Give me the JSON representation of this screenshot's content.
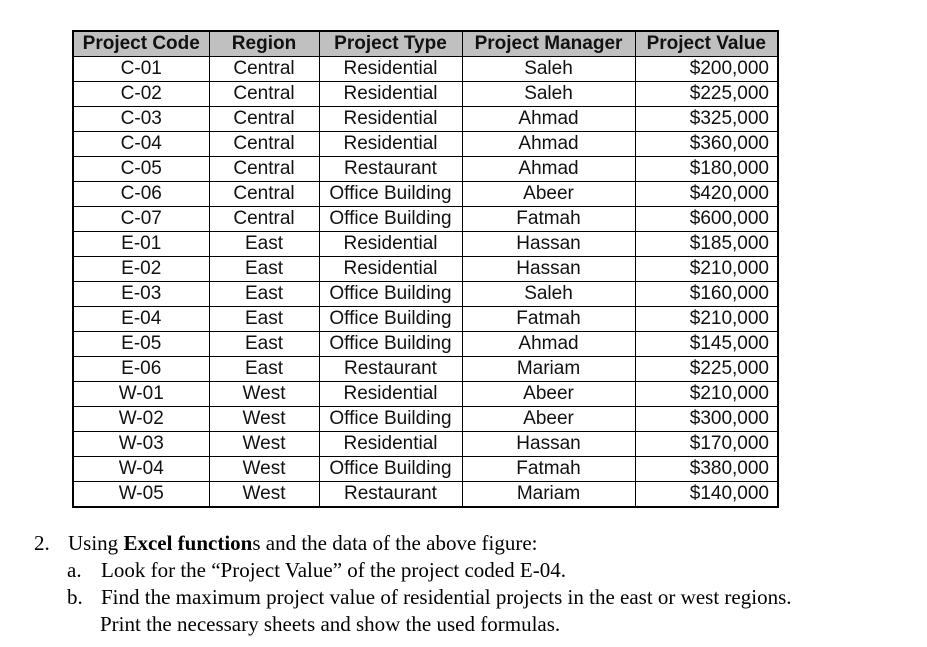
{
  "table": {
    "headers": [
      "Project Code",
      "Region",
      "Project Type",
      "Project Manager",
      "Project Value"
    ],
    "header_bg": "#c0c0c0",
    "rows": [
      [
        "C-01",
        "Central",
        "Residential",
        "Saleh",
        "$200,000"
      ],
      [
        "C-02",
        "Central",
        "Residential",
        "Saleh",
        "$225,000"
      ],
      [
        "C-03",
        "Central",
        "Residential",
        "Ahmad",
        "$325,000"
      ],
      [
        "C-04",
        "Central",
        "Residential",
        "Ahmad",
        "$360,000"
      ],
      [
        "C-05",
        "Central",
        "Restaurant",
        "Ahmad",
        "$180,000"
      ],
      [
        "C-06",
        "Central",
        "Office Building",
        "Abeer",
        "$420,000"
      ],
      [
        "C-07",
        "Central",
        "Office Building",
        "Fatmah",
        "$600,000"
      ],
      [
        "E-01",
        "East",
        "Residential",
        "Hassan",
        "$185,000"
      ],
      [
        "E-02",
        "East",
        "Residential",
        "Hassan",
        "$210,000"
      ],
      [
        "E-03",
        "East",
        "Office Building",
        "Saleh",
        "$160,000"
      ],
      [
        "E-04",
        "East",
        "Office Building",
        "Fatmah",
        "$210,000"
      ],
      [
        "E-05",
        "East",
        "Office Building",
        "Ahmad",
        "$145,000"
      ],
      [
        "E-06",
        "East",
        "Restaurant",
        "Mariam",
        "$225,000"
      ],
      [
        "W-01",
        "West",
        "Residential",
        "Abeer",
        "$210,000"
      ],
      [
        "W-02",
        "West",
        "Office Building",
        "Abeer",
        "$300,000"
      ],
      [
        "W-03",
        "West",
        "Residential",
        "Hassan",
        "$170,000"
      ],
      [
        "W-04",
        "West",
        "Office Building",
        "Fatmah",
        "$380,000"
      ],
      [
        "W-05",
        "West",
        "Restaurant",
        "Mariam",
        "$140,000"
      ]
    ]
  },
  "question": {
    "number": "2.",
    "intro_prefix": "Using ",
    "intro_bold": "Excel function",
    "intro_suffix": "s and the data of the above figure:",
    "items": [
      {
        "label": "a.",
        "text": "Look for the “Project Value” of the project coded E-04."
      },
      {
        "label": "b.",
        "text": "Find the maximum project value of residential projects in the east or west regions."
      }
    ],
    "continuation": "Print the necessary sheets and show the used formulas."
  }
}
